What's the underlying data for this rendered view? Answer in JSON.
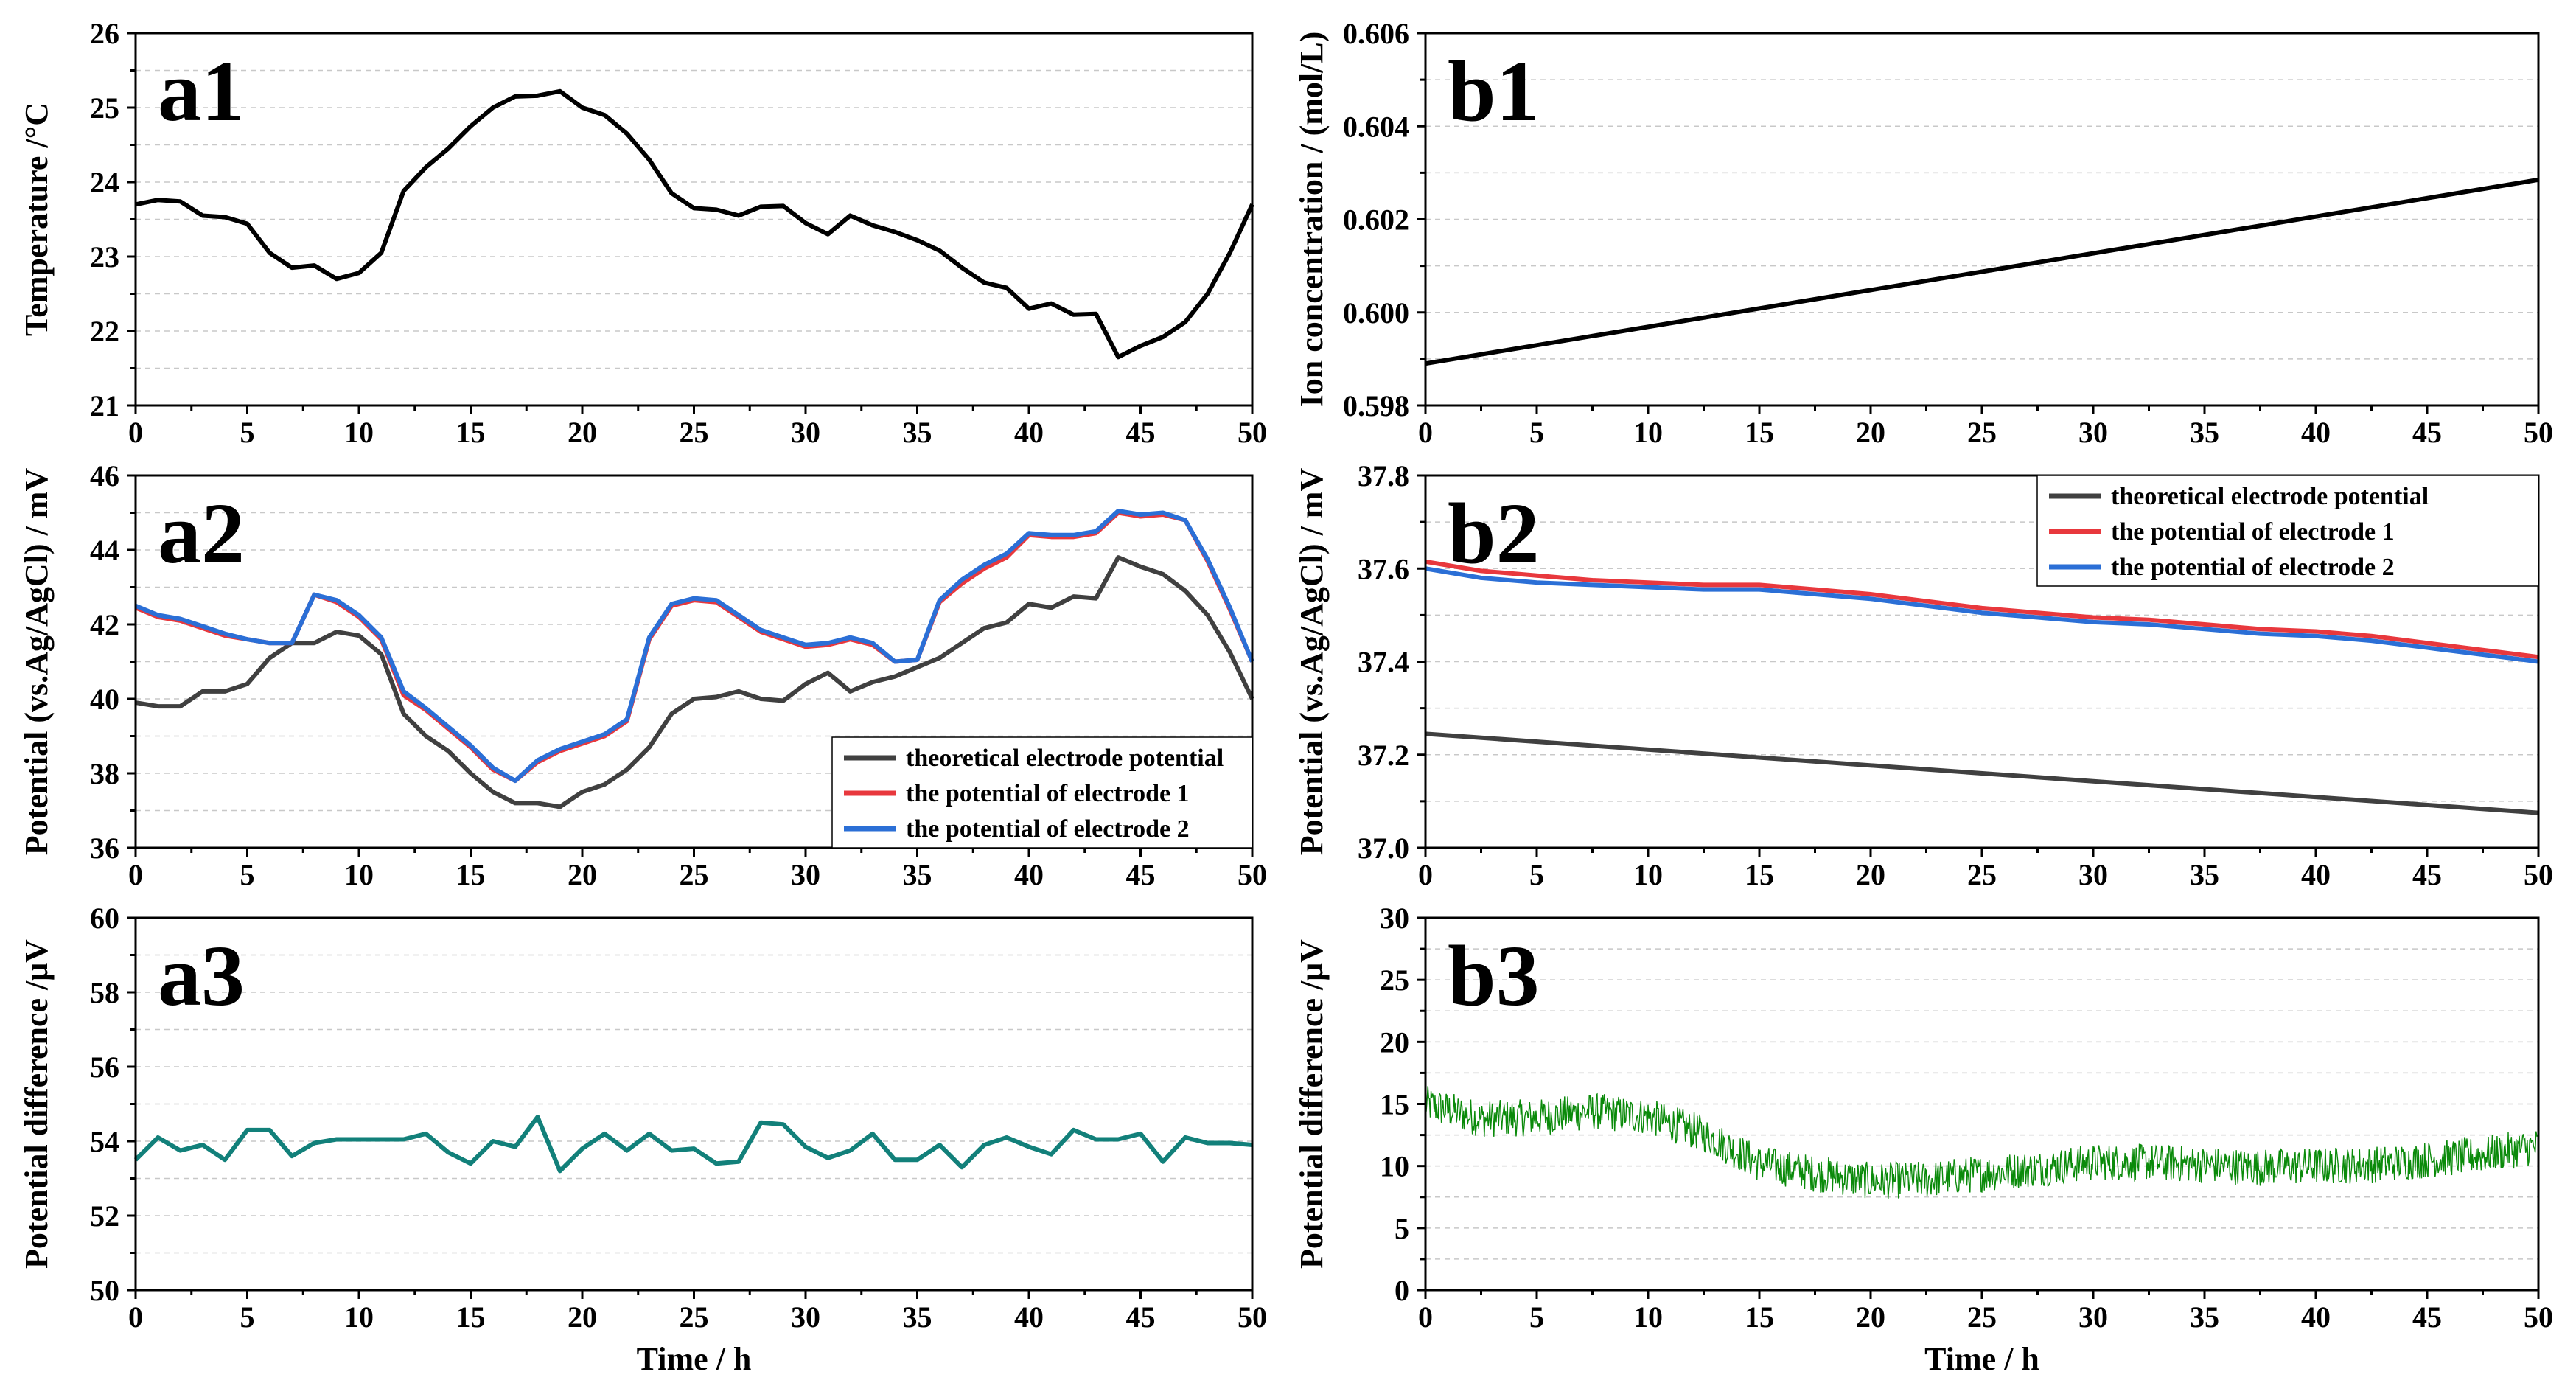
{
  "chart_data": [
    {
      "id": "a1",
      "type": "line",
      "panel_label": "a1",
      "xlabel": "",
      "ylabel": "Temperature /°C",
      "xlim": [
        0,
        50
      ],
      "ylim": [
        21,
        26
      ],
      "xticks": [
        0,
        5,
        10,
        15,
        20,
        25,
        30,
        35,
        40,
        45,
        50
      ],
      "yticks": [
        21,
        22,
        23,
        24,
        25,
        26
      ],
      "grid": true,
      "legend": null,
      "series": [
        {
          "name": "",
          "color": "#000000",
          "x": [
            0,
            1,
            2,
            3,
            4,
            5,
            6,
            7,
            8,
            9,
            10,
            11,
            12,
            13,
            14,
            15,
            16,
            17,
            18,
            19,
            20,
            21,
            22,
            23,
            24,
            25,
            26,
            27,
            28,
            29,
            30,
            31,
            32,
            33,
            34,
            35,
            36,
            37,
            38,
            39,
            40,
            41,
            42,
            43,
            44,
            45,
            46,
            47,
            48,
            49,
            50
          ],
          "y": [
            23.7,
            23.76,
            23.74,
            23.55,
            23.53,
            23.44,
            23.05,
            22.85,
            22.88,
            22.7,
            22.78,
            23.05,
            23.88,
            24.2,
            24.45,
            24.75,
            25.0,
            25.15,
            25.16,
            25.22,
            25.0,
            24.9,
            24.65,
            24.3,
            23.85,
            23.65,
            23.63,
            23.55,
            23.67,
            23.68,
            23.45,
            23.3,
            23.55,
            23.42,
            23.33,
            23.22,
            23.08,
            22.85,
            22.65,
            22.58,
            22.3,
            22.37,
            22.22,
            22.23,
            21.65,
            21.8,
            21.92,
            22.12,
            22.5,
            23.05,
            23.7
          ]
        }
      ]
    },
    {
      "id": "a2",
      "type": "line",
      "panel_label": "a2",
      "xlabel": "",
      "ylabel": "Potential (vs.Ag/AgCl) / mV",
      "xlim": [
        0,
        50
      ],
      "ylim": [
        36,
        46
      ],
      "xticks": [
        0,
        5,
        10,
        15,
        20,
        25,
        30,
        35,
        40,
        45,
        50
      ],
      "yticks": [
        36,
        38,
        40,
        42,
        44,
        46
      ],
      "grid": true,
      "legend": "bottom-right",
      "series": [
        {
          "name": "theoretical electrode potential",
          "color": "#404040",
          "x": [
            0,
            1,
            2,
            3,
            4,
            5,
            6,
            7,
            8,
            9,
            10,
            11,
            12,
            13,
            14,
            15,
            16,
            17,
            18,
            19,
            20,
            21,
            22,
            23,
            24,
            25,
            26,
            27,
            28,
            29,
            30,
            31,
            32,
            33,
            34,
            35,
            36,
            37,
            38,
            39,
            40,
            41,
            42,
            43,
            44,
            45,
            46,
            47,
            48,
            49,
            50
          ],
          "y": [
            39.9,
            39.8,
            39.8,
            40.2,
            40.2,
            40.4,
            41.1,
            41.5,
            41.5,
            41.8,
            41.7,
            41.2,
            39.6,
            39.0,
            38.6,
            38.0,
            37.5,
            37.2,
            37.2,
            37.1,
            37.5,
            37.7,
            38.1,
            38.7,
            39.6,
            40.0,
            40.05,
            40.2,
            40.0,
            39.95,
            40.4,
            40.7,
            40.2,
            40.45,
            40.6,
            40.85,
            41.1,
            41.5,
            41.9,
            42.05,
            42.55,
            42.45,
            42.75,
            42.7,
            43.8,
            43.55,
            43.35,
            42.9,
            42.25,
            41.25,
            40.0
          ]
        },
        {
          "name": "the potential of electrode 1",
          "color": "#e8383d",
          "x": [
            0,
            1,
            2,
            3,
            4,
            5,
            6,
            7,
            8,
            9,
            10,
            11,
            12,
            13,
            14,
            15,
            16,
            17,
            18,
            19,
            20,
            21,
            22,
            23,
            24,
            25,
            26,
            27,
            28,
            29,
            30,
            31,
            32,
            33,
            34,
            35,
            36,
            37,
            38,
            39,
            40,
            41,
            42,
            43,
            44,
            45,
            46,
            47,
            48,
            49,
            50
          ],
          "y": [
            42.45,
            42.2,
            42.1,
            41.9,
            41.7,
            41.6,
            41.5,
            41.5,
            42.8,
            42.6,
            42.2,
            41.6,
            40.1,
            39.7,
            39.2,
            38.7,
            38.1,
            37.8,
            38.3,
            38.6,
            38.8,
            39.0,
            39.4,
            41.6,
            42.5,
            42.65,
            42.6,
            42.2,
            41.8,
            41.6,
            41.4,
            41.45,
            41.6,
            41.45,
            41.0,
            41.05,
            42.6,
            43.1,
            43.5,
            43.8,
            44.4,
            44.35,
            44.35,
            44.45,
            45.0,
            44.9,
            44.95,
            44.8,
            43.7,
            42.4,
            41.0
          ]
        },
        {
          "name": "the potential of electrode 2",
          "color": "#2b6fd6",
          "x": [
            0,
            1,
            2,
            3,
            4,
            5,
            6,
            7,
            8,
            9,
            10,
            11,
            12,
            13,
            14,
            15,
            16,
            17,
            18,
            19,
            20,
            21,
            22,
            23,
            24,
            25,
            26,
            27,
            28,
            29,
            30,
            31,
            32,
            33,
            34,
            35,
            36,
            37,
            38,
            39,
            40,
            41,
            42,
            43,
            44,
            45,
            46,
            47,
            48,
            49,
            50
          ],
          "y": [
            42.5,
            42.25,
            42.15,
            41.95,
            41.75,
            41.6,
            41.5,
            41.5,
            42.8,
            42.65,
            42.25,
            41.65,
            40.2,
            39.75,
            39.25,
            38.75,
            38.15,
            37.8,
            38.35,
            38.65,
            38.85,
            39.05,
            39.45,
            41.65,
            42.55,
            42.7,
            42.65,
            42.25,
            41.85,
            41.65,
            41.45,
            41.5,
            41.65,
            41.5,
            41.0,
            41.05,
            42.65,
            43.2,
            43.6,
            43.9,
            44.45,
            44.4,
            44.4,
            44.5,
            45.05,
            44.95,
            45.0,
            44.8,
            43.75,
            42.45,
            41.0
          ]
        }
      ]
    },
    {
      "id": "a3",
      "type": "line",
      "panel_label": "a3",
      "xlabel": "Time / h",
      "ylabel": "Potential difference /μV",
      "xlim": [
        0,
        50
      ],
      "ylim": [
        50,
        60
      ],
      "xticks": [
        0,
        5,
        10,
        15,
        20,
        25,
        30,
        35,
        40,
        45,
        50
      ],
      "yticks": [
        50,
        52,
        54,
        56,
        58,
        60
      ],
      "grid": true,
      "legend": null,
      "series": [
        {
          "name": "",
          "color": "#12807a",
          "x": [
            0,
            1,
            2,
            3,
            4,
            5,
            6,
            7,
            8,
            9,
            10,
            11,
            12,
            13,
            14,
            15,
            16,
            17,
            18,
            19,
            20,
            21,
            22,
            23,
            24,
            25,
            26,
            27,
            28,
            29,
            30,
            31,
            32,
            33,
            34,
            35,
            36,
            37,
            38,
            39,
            40,
            41,
            42,
            43,
            44,
            45,
            46,
            47,
            48,
            49,
            50
          ],
          "y": [
            53.5,
            54.1,
            53.75,
            53.9,
            53.5,
            54.3,
            54.3,
            53.6,
            53.95,
            54.05,
            54.05,
            54.05,
            54.05,
            54.2,
            53.7,
            53.4,
            54.0,
            53.85,
            54.65,
            53.2,
            53.8,
            54.2,
            53.75,
            54.2,
            53.75,
            53.8,
            53.4,
            53.45,
            54.5,
            54.45,
            53.85,
            53.55,
            53.75,
            54.2,
            53.5,
            53.5,
            53.9,
            53.3,
            53.9,
            54.1,
            53.85,
            53.65,
            54.3,
            54.05,
            54.05,
            54.2,
            53.45,
            54.1,
            53.95,
            53.95,
            53.9
          ]
        }
      ]
    },
    {
      "id": "b1",
      "type": "line",
      "panel_label": "b1",
      "xlabel": "",
      "ylabel": "Ion concentration / (mol/L)",
      "xlim": [
        0,
        50
      ],
      "ylim": [
        0.598,
        0.606
      ],
      "xticks": [
        0,
        5,
        10,
        15,
        20,
        25,
        30,
        35,
        40,
        45,
        50
      ],
      "yticks": [
        0.598,
        0.6,
        0.602,
        0.604,
        0.606
      ],
      "ytick_labels": [
        "0.598",
        "0.600",
        "0.602",
        "0.604",
        "0.606"
      ],
      "grid": true,
      "legend": null,
      "series": [
        {
          "name": "",
          "color": "#000000",
          "x": [
            0,
            50
          ],
          "y": [
            0.5989,
            0.60285
          ]
        }
      ]
    },
    {
      "id": "b2",
      "type": "line",
      "panel_label": "b2",
      "xlabel": "",
      "ylabel": "Potential (vs.Ag/AgCl) / mV",
      "xlim": [
        0,
        50
      ],
      "ylim": [
        37.0,
        37.8
      ],
      "xticks": [
        0,
        5,
        10,
        15,
        20,
        25,
        30,
        35,
        40,
        45,
        50
      ],
      "yticks": [
        37.0,
        37.2,
        37.4,
        37.6,
        37.8
      ],
      "ytick_labels": [
        "37.0",
        "37.2",
        "37.4",
        "37.6",
        "37.8"
      ],
      "grid": true,
      "legend": "top-right",
      "series": [
        {
          "name": "theoretical electrode potential",
          "color": "#404040",
          "x": [
            0,
            50
          ],
          "y": [
            37.245,
            37.075
          ]
        },
        {
          "name": "the potential of electrode 1",
          "color": "#e8383d",
          "x": [
            0,
            2.5,
            5,
            7.5,
            10,
            12.5,
            15,
            17.5,
            20,
            22.5,
            25,
            27.5,
            30,
            32.5,
            35,
            37.5,
            40,
            42.5,
            45,
            47.5,
            50
          ],
          "y": [
            37.615,
            37.595,
            37.585,
            37.575,
            37.57,
            37.565,
            37.565,
            37.555,
            37.545,
            37.53,
            37.515,
            37.505,
            37.495,
            37.49,
            37.48,
            37.47,
            37.465,
            37.455,
            37.44,
            37.425,
            37.41
          ]
        },
        {
          "name": "the potential of electrode 2",
          "color": "#2b6fd6",
          "x": [
            0,
            2.5,
            5,
            7.5,
            10,
            12.5,
            15,
            17.5,
            20,
            22.5,
            25,
            27.5,
            30,
            32.5,
            35,
            37.5,
            40,
            42.5,
            45,
            47.5,
            50
          ],
          "y": [
            37.6,
            37.58,
            37.57,
            37.565,
            37.56,
            37.555,
            37.555,
            37.545,
            37.535,
            37.52,
            37.505,
            37.495,
            37.485,
            37.48,
            37.47,
            37.46,
            37.455,
            37.445,
            37.43,
            37.415,
            37.4
          ]
        }
      ]
    },
    {
      "id": "b3",
      "type": "line",
      "panel_label": "b3",
      "xlabel": "Time / h",
      "ylabel": "Potential difference /μV",
      "xlim": [
        0,
        50
      ],
      "ylim": [
        0,
        30
      ],
      "xticks": [
        0,
        5,
        10,
        15,
        20,
        25,
        30,
        35,
        40,
        45,
        50
      ],
      "yticks": [
        0,
        5,
        10,
        15,
        20,
        25,
        30
      ],
      "grid": true,
      "legend": null,
      "noise_amplitude": 1.5,
      "series": [
        {
          "name": "",
          "color": "#0a8a0a",
          "x": [
            0,
            2.5,
            5,
            7.5,
            10,
            12.5,
            15,
            17.5,
            20,
            22.5,
            25,
            27.5,
            30,
            32.5,
            35,
            37.5,
            40,
            42.5,
            45,
            47.5,
            50
          ],
          "y": [
            15.0,
            13.8,
            13.9,
            14.4,
            14.0,
            12.6,
            10.2,
            9.4,
            8.8,
            8.9,
            9.4,
            9.8,
            10.3,
            10.3,
            10.1,
            9.9,
            10.0,
            10.1,
            10.5,
            10.9,
            11.6
          ]
        }
      ]
    }
  ]
}
